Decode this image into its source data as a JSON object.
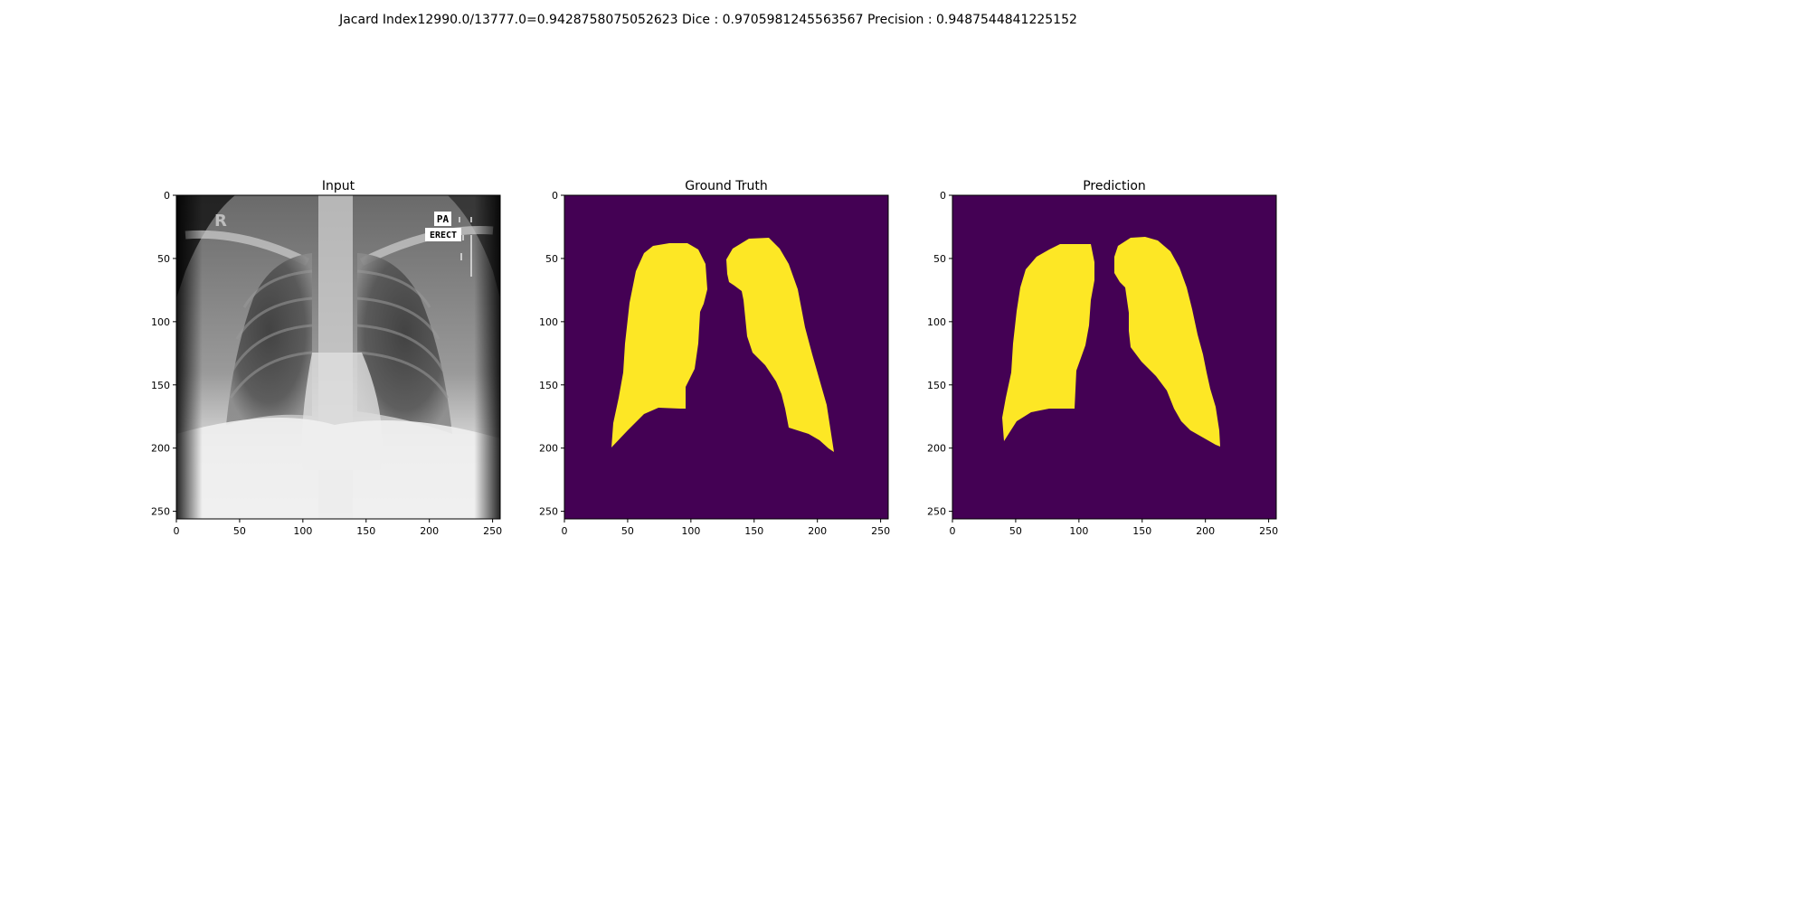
{
  "suptitle": "Jacard Index12990.0/13777.0=0.9428758075052623 Dice : 0.9705981245563567 Precision : 0.9487544841225152",
  "panels": [
    {
      "title": "Input",
      "kind": "xray"
    },
    {
      "title": "Ground Truth",
      "kind": "mask"
    },
    {
      "title": "Prediction",
      "kind": "mask"
    }
  ],
  "axes": {
    "x_ticks": [
      "0",
      "50",
      "100",
      "150",
      "200",
      "250"
    ],
    "y_ticks": [
      "0",
      "50",
      "100",
      "150",
      "200",
      "250"
    ],
    "range": [
      0,
      256
    ]
  },
  "xray_labels": {
    "side_marker": "R",
    "pa": "PA",
    "erect": "ERECT"
  },
  "colors": {
    "mask_background": "#440154",
    "mask_foreground": "#fde725"
  }
}
